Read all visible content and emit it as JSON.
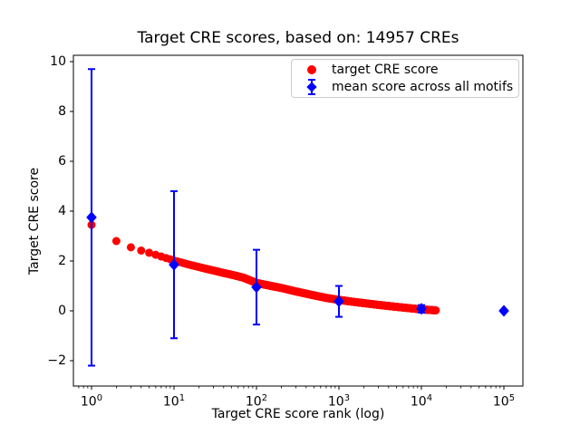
{
  "window": {
    "background": "#ffffff"
  },
  "chart_data": {
    "type": "scatter",
    "title": "Target CRE scores, based on: 14957 CREs",
    "xlabel": "Target CRE score rank (log)",
    "ylabel": "Target CRE score",
    "x_scale": "log",
    "grid": false,
    "legend_position": "upper right",
    "xlim_log10": [
      -0.22,
      5.23
    ],
    "ylim": [
      -3.0,
      10.25
    ],
    "x_ticks": [
      {
        "value": 1,
        "base": "10",
        "exp": "0"
      },
      {
        "value": 10,
        "base": "10",
        "exp": "1"
      },
      {
        "value": 100,
        "base": "10",
        "exp": "2"
      },
      {
        "value": 1000,
        "base": "10",
        "exp": "3"
      },
      {
        "value": 10000,
        "base": "10",
        "exp": "4"
      },
      {
        "value": 100000,
        "base": "10",
        "exp": "5"
      }
    ],
    "y_ticks": [
      {
        "value": -2,
        "label": "−2"
      },
      {
        "value": 0,
        "label": "0"
      },
      {
        "value": 2,
        "label": "2"
      },
      {
        "value": 4,
        "label": "4"
      },
      {
        "value": 6,
        "label": "6"
      },
      {
        "value": 8,
        "label": "8"
      },
      {
        "value": 10,
        "label": "10"
      }
    ],
    "series": [
      {
        "name": "target CRE score",
        "type": "scatter",
        "marker": "circle",
        "color": "#ff0000",
        "n_points": 14957,
        "x_is_rank": true,
        "sampled_points": [
          [
            1,
            3.45
          ],
          [
            2,
            2.8
          ],
          [
            3,
            2.55
          ],
          [
            4,
            2.42
          ],
          [
            5,
            2.33
          ],
          [
            6,
            2.25
          ],
          [
            7,
            2.18
          ],
          [
            8,
            2.12
          ],
          [
            9,
            2.07
          ],
          [
            10,
            2.02
          ],
          [
            12,
            1.95
          ],
          [
            15,
            1.86
          ],
          [
            20,
            1.76
          ],
          [
            25,
            1.68
          ],
          [
            30,
            1.62
          ],
          [
            40,
            1.52
          ],
          [
            50,
            1.45
          ],
          [
            70,
            1.33
          ],
          [
            100,
            1.12
          ],
          [
            150,
            1.0
          ],
          [
            200,
            0.92
          ],
          [
            300,
            0.78
          ],
          [
            500,
            0.62
          ],
          [
            700,
            0.52
          ],
          [
            1000,
            0.44
          ],
          [
            1500,
            0.36
          ],
          [
            2000,
            0.31
          ],
          [
            3000,
            0.24
          ],
          [
            5000,
            0.16
          ],
          [
            7000,
            0.11
          ],
          [
            10000,
            0.06
          ],
          [
            12000,
            0.04
          ],
          [
            14957,
            0.02
          ]
        ]
      },
      {
        "name": "mean score across all motifs",
        "type": "errorbar",
        "marker": "diamond",
        "color": "#0000ff",
        "x": [
          1,
          10,
          100,
          1000,
          10000,
          100000
        ],
        "y": [
          3.75,
          1.85,
          0.95,
          0.38,
          0.08,
          0.0
        ],
        "yerr": [
          5.95,
          2.95,
          1.5,
          0.62,
          0.15,
          0.03
        ]
      }
    ]
  }
}
